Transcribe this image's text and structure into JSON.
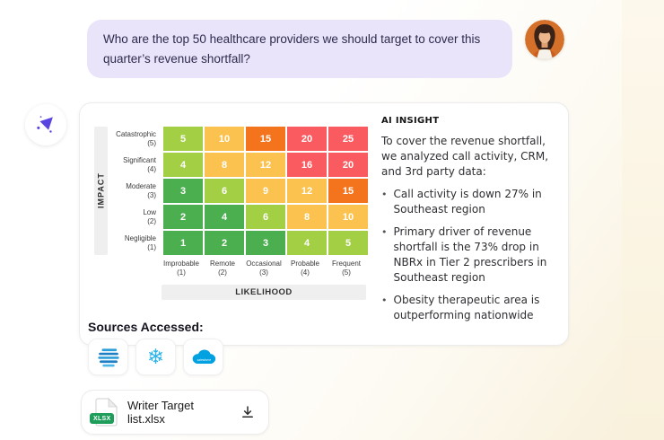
{
  "colors": {
    "green": "#4BAE4F",
    "lime": "#A3CF44",
    "amber": "#FCC24F",
    "orange": "#F4731D",
    "red": "#F95B60",
    "bubble_bg": "#E9E4FA",
    "accent_purple": "#5B45E0",
    "snowflake_blue": "#2FB4E9",
    "salesforce_blue": "#00A1E0",
    "xlsx_green": "#1E9E5A"
  },
  "user_message": {
    "text": "Who are the top 50 healthcare providers we should target to cover this quarter’s revenue shortfall?"
  },
  "card": {
    "matrix": {
      "impact_label": "IMPACT",
      "likelihood_label": "LIKELIHOOD",
      "rows": [
        {
          "name": "Catastrophic",
          "level": "(5)",
          "cells": [
            {
              "v": "5",
              "c": "lime"
            },
            {
              "v": "10",
              "c": "amber"
            },
            {
              "v": "15",
              "c": "orange"
            },
            {
              "v": "20",
              "c": "red"
            },
            {
              "v": "25",
              "c": "red"
            }
          ]
        },
        {
          "name": "Significant",
          "level": "(4)",
          "cells": [
            {
              "v": "4",
              "c": "lime"
            },
            {
              "v": "8",
              "c": "amber"
            },
            {
              "v": "12",
              "c": "amber"
            },
            {
              "v": "16",
              "c": "red"
            },
            {
              "v": "20",
              "c": "red"
            }
          ]
        },
        {
          "name": "Moderate",
          "level": "(3)",
          "cells": [
            {
              "v": "3",
              "c": "green"
            },
            {
              "v": "6",
              "c": "lime"
            },
            {
              "v": "9",
              "c": "amber"
            },
            {
              "v": "12",
              "c": "amber"
            },
            {
              "v": "15",
              "c": "orange"
            }
          ]
        },
        {
          "name": "Low",
          "level": "(2)",
          "cells": [
            {
              "v": "2",
              "c": "green"
            },
            {
              "v": "4",
              "c": "green"
            },
            {
              "v": "6",
              "c": "lime"
            },
            {
              "v": "8",
              "c": "amber"
            },
            {
              "v": "10",
              "c": "amber"
            }
          ]
        },
        {
          "name": "Negligible",
          "level": "(1)",
          "cells": [
            {
              "v": "1",
              "c": "green"
            },
            {
              "v": "2",
              "c": "green"
            },
            {
              "v": "3",
              "c": "green"
            },
            {
              "v": "4",
              "c": "lime"
            },
            {
              "v": "5",
              "c": "lime"
            }
          ]
        }
      ],
      "columns": [
        {
          "name": "Improbable",
          "level": "(1)"
        },
        {
          "name": "Remote",
          "level": "(2)"
        },
        {
          "name": "Occasional",
          "level": "(3)"
        },
        {
          "name": "Probable",
          "level": "(4)"
        },
        {
          "name": "Frequent",
          "level": "(5)"
        }
      ]
    },
    "insight": {
      "heading": "AI INSIGHT",
      "intro": "To cover the revenue shortfall, we analyzed call activity, CRM, and 3rd party data:",
      "bullets": [
        "Call activity is down 27% in Southeast region",
        "Primary driver of revenue shortfall is the 73% drop in NBRx in Tier 2 prescribers in Southeast region",
        "Obesity therapeutic area is outperforming nationwide"
      ]
    }
  },
  "sources": {
    "heading": "Sources Accessed:",
    "items": [
      "data-lines-icon",
      "snowflake-icon",
      "salesforce-icon"
    ]
  },
  "attachment": {
    "filename": "Writer Target list.xlsx",
    "badge": "XLSX",
    "download_icon": "download-icon"
  },
  "chart_data": {
    "type": "heatmap",
    "title": "Risk matrix (Impact x Likelihood)",
    "xlabel": "LIKELIHOOD",
    "ylabel": "IMPACT",
    "x_categories": [
      "Improbable (1)",
      "Remote (2)",
      "Occasional (3)",
      "Probable (4)",
      "Frequent (5)"
    ],
    "y_categories": [
      "Catastrophic (5)",
      "Significant (4)",
      "Moderate (3)",
      "Low (2)",
      "Negligible (1)"
    ],
    "values": [
      [
        5,
        10,
        15,
        20,
        25
      ],
      [
        4,
        8,
        12,
        16,
        20
      ],
      [
        3,
        6,
        9,
        12,
        15
      ],
      [
        2,
        4,
        6,
        8,
        10
      ],
      [
        1,
        2,
        3,
        4,
        5
      ]
    ],
    "cell_colors": [
      [
        "lime",
        "amber",
        "orange",
        "red",
        "red"
      ],
      [
        "lime",
        "amber",
        "amber",
        "red",
        "red"
      ],
      [
        "green",
        "lime",
        "amber",
        "amber",
        "orange"
      ],
      [
        "green",
        "green",
        "lime",
        "amber",
        "amber"
      ],
      [
        "green",
        "green",
        "green",
        "lime",
        "lime"
      ]
    ],
    "legend_position": "none",
    "grid": false
  }
}
